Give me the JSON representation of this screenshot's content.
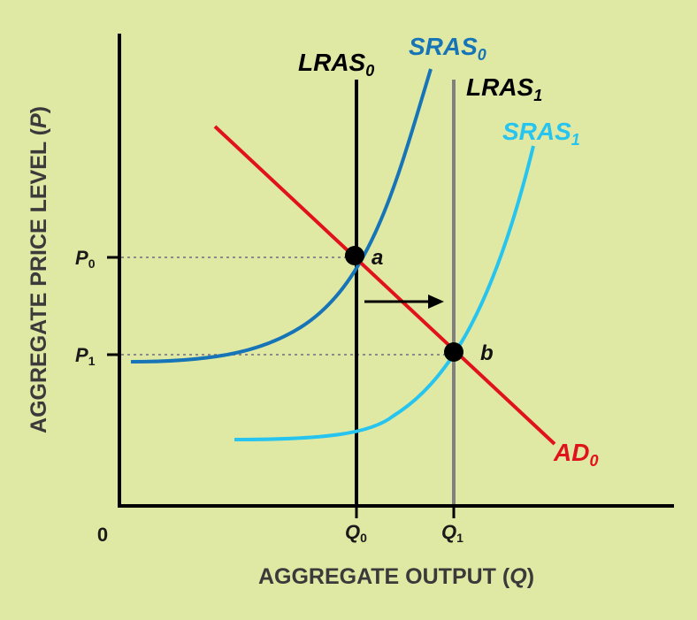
{
  "figure": {
    "y_axis_title": {
      "text": "AGGREGATE PRICE LEVEL (",
      "var": "P",
      "close": ")"
    },
    "x_axis_title": {
      "text": "AGGREGATE OUTPUT (",
      "var": "Q",
      "close": ")"
    },
    "origin_label": "0",
    "y_ticks": [
      {
        "base": "P",
        "sub": "0"
      },
      {
        "base": "P",
        "sub": "1"
      }
    ],
    "x_ticks": [
      {
        "base": "Q",
        "sub": "0"
      },
      {
        "base": "Q",
        "sub": "1"
      }
    ],
    "curves": {
      "lras0": {
        "base": "LRAS",
        "sub": "0",
        "color": "#000000"
      },
      "lras1": {
        "base": "LRAS",
        "sub": "1",
        "color": "#808080"
      },
      "sras0": {
        "base": "SRAS",
        "sub": "0",
        "color": "#1674b7"
      },
      "sras1": {
        "base": "SRAS",
        "sub": "1",
        "color": "#26c4ee"
      },
      "ad0": {
        "base": "AD",
        "sub": "0",
        "color": "#e0121b"
      }
    },
    "points": [
      {
        "label": "a"
      },
      {
        "label": "b"
      }
    ],
    "colors": {
      "background": "#dfe9a4",
      "axis": "#000000",
      "guide": "#8a8a8a",
      "point": "#000000"
    }
  }
}
